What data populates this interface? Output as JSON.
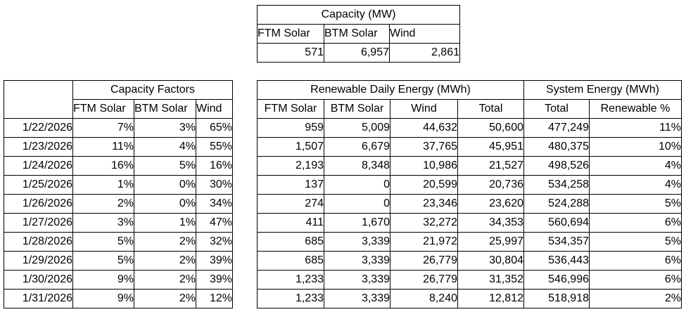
{
  "capacity": {
    "title": "Capacity (MW)",
    "columns": [
      "FTM Solar",
      "BTM Solar",
      "Wind"
    ],
    "rows": [
      [
        "571",
        "6,957",
        "2,861"
      ]
    ]
  },
  "capacity_factors": {
    "title": "Capacity Factors",
    "columns": [
      "FTM Solar",
      "BTM Solar",
      "Wind"
    ],
    "rows": [
      [
        "1/22/2026",
        "7%",
        "3%",
        "65%"
      ],
      [
        "1/23/2026",
        "11%",
        "4%",
        "55%"
      ],
      [
        "1/24/2026",
        "16%",
        "5%",
        "16%"
      ],
      [
        "1/25/2026",
        "1%",
        "0%",
        "30%"
      ],
      [
        "1/26/2026",
        "2%",
        "0%",
        "34%"
      ],
      [
        "1/27/2026",
        "3%",
        "1%",
        "47%"
      ],
      [
        "1/28/2026",
        "5%",
        "2%",
        "32%"
      ],
      [
        "1/29/2026",
        "5%",
        "2%",
        "39%"
      ],
      [
        "1/30/2026",
        "9%",
        "2%",
        "39%"
      ],
      [
        "1/31/2026",
        "9%",
        "2%",
        "12%"
      ]
    ]
  },
  "energy": {
    "group1_title": "Renewable Daily Energy (MWh)",
    "group2_title": "System Energy (MWh)",
    "columns": [
      "FTM Solar",
      "BTM Solar",
      "Wind",
      "Total",
      "Total",
      "Renewable %"
    ],
    "rows": [
      [
        "959",
        "5,009",
        "44,632",
        "50,600",
        "477,249",
        "11%"
      ],
      [
        "1,507",
        "6,679",
        "37,765",
        "45,951",
        "480,375",
        "10%"
      ],
      [
        "2,193",
        "8,348",
        "10,986",
        "21,527",
        "498,526",
        "4%"
      ],
      [
        "137",
        "0",
        "20,599",
        "20,736",
        "534,258",
        "4%"
      ],
      [
        "274",
        "0",
        "23,346",
        "23,620",
        "524,288",
        "5%"
      ],
      [
        "411",
        "1,670",
        "32,272",
        "34,353",
        "560,694",
        "6%"
      ],
      [
        "685",
        "3,339",
        "21,972",
        "25,997",
        "534,357",
        "5%"
      ],
      [
        "685",
        "3,339",
        "26,779",
        "30,804",
        "536,443",
        "6%"
      ],
      [
        "1,233",
        "3,339",
        "26,779",
        "31,352",
        "546,996",
        "6%"
      ],
      [
        "1,233",
        "3,339",
        "8,240",
        "12,812",
        "518,918",
        "2%"
      ]
    ]
  }
}
